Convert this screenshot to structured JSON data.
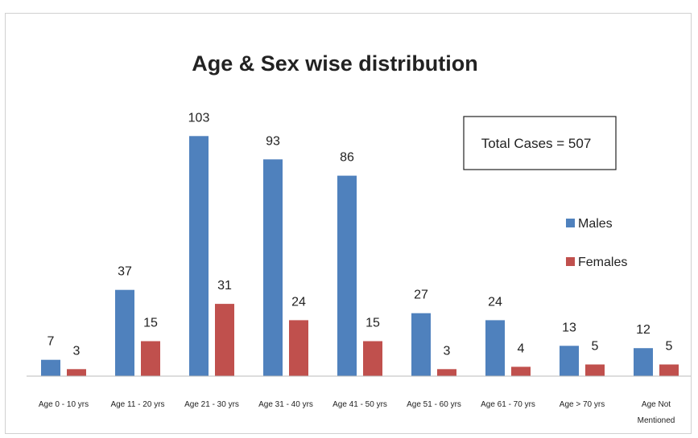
{
  "chart_data": {
    "type": "bar",
    "title": "Age & Sex wise distribution",
    "categories": [
      [
        "Age 0 - 10 yrs"
      ],
      [
        "Age 11 - 20 yrs"
      ],
      [
        "Age 21 - 30 yrs"
      ],
      [
        "Age 31 - 40 yrs"
      ],
      [
        "Age 41 - 50 yrs"
      ],
      [
        "Age 51 - 60 yrs"
      ],
      [
        "Age 61 - 70 yrs"
      ],
      [
        "Age > 70 yrs"
      ],
      [
        "Age Not",
        "Mentioned"
      ]
    ],
    "series": [
      {
        "name": "Males",
        "color": "#4f81bd",
        "values": [
          7,
          37,
          103,
          93,
          86,
          27,
          24,
          13,
          12
        ]
      },
      {
        "name": "Females",
        "color": "#c0504d",
        "values": [
          3,
          15,
          31,
          24,
          15,
          3,
          4,
          5,
          5
        ]
      }
    ],
    "annotation": "Total Cases = 507",
    "legend_position": "right",
    "grid": false,
    "ylim": [
      0,
      110
    ]
  }
}
